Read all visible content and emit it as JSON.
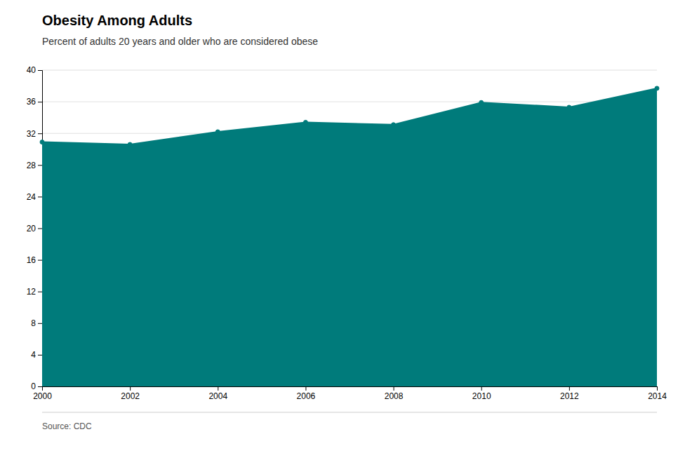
{
  "chart_data": {
    "type": "area",
    "title": "Obesity Among Adults",
    "subtitle": "Percent of adults 20 years and older who are considered obese",
    "source": "Source: CDC",
    "x": [
      2000,
      2002,
      2004,
      2006,
      2008,
      2010,
      2012,
      2014
    ],
    "values": [
      30.9,
      30.6,
      32.2,
      33.4,
      33.1,
      35.9,
      35.3,
      37.7
    ],
    "color": "#007b7b",
    "marker": "circle",
    "xlim": [
      2000,
      2014
    ],
    "xticks": [
      2000,
      2002,
      2004,
      2006,
      2008,
      2010,
      2012,
      2014
    ],
    "ylim": [
      0,
      40
    ],
    "yticks": [
      0,
      4,
      8,
      12,
      16,
      20,
      24,
      28,
      32,
      36,
      40
    ],
    "grid": true
  }
}
